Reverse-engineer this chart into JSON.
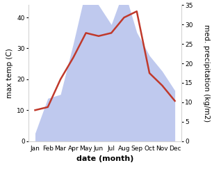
{
  "months": [
    "Jan",
    "Feb",
    "Mar",
    "Apr",
    "May",
    "Jun",
    "Jul",
    "Aug",
    "Sep",
    "Oct",
    "Nov",
    "Dec"
  ],
  "temperature": [
    10,
    11,
    20,
    27,
    35,
    34,
    35,
    40,
    42,
    22,
    18,
    13
  ],
  "precipitation": [
    2,
    11,
    12,
    25,
    39,
    35,
    30,
    39,
    28,
    22,
    18,
    13
  ],
  "temp_color": "#c0392b",
  "precip_color": "#b8c4ed",
  "ylabel_left": "max temp (C)",
  "ylabel_right": "med. precipitation (kg/m2)",
  "xlabel": "date (month)",
  "ylim_left": [
    0,
    44
  ],
  "ylim_right": [
    0,
    35
  ],
  "yticks_left": [
    0,
    10,
    20,
    30,
    40
  ],
  "yticks_right": [
    0,
    5,
    10,
    15,
    20,
    25,
    30,
    35
  ],
  "background_color": "#ffffff",
  "temp_linewidth": 1.8,
  "xlabel_fontsize": 8,
  "ylabel_fontsize": 7.5,
  "tick_fontsize": 6.5,
  "fig_width": 3.18,
  "fig_height": 2.47,
  "dpi": 100
}
